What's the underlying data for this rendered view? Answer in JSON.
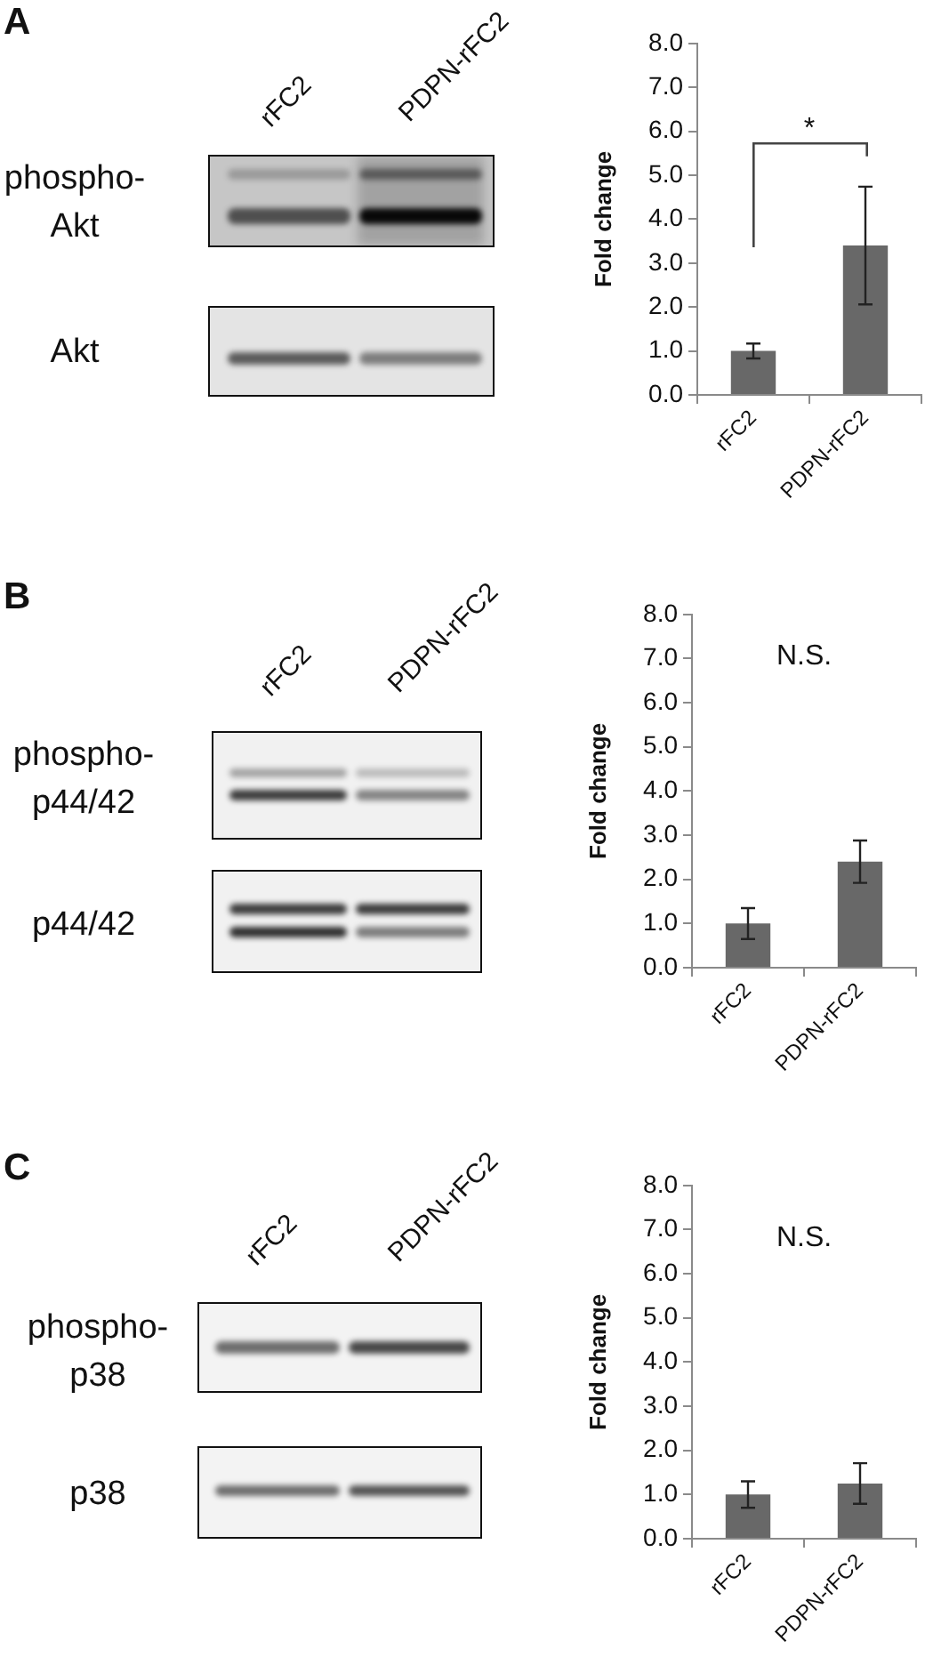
{
  "chart_data": [
    {
      "type": "bar",
      "ylabel": "Fold change",
      "categories": [
        "rFC2",
        "PDPN-rFC2"
      ],
      "values": [
        1.0,
        3.4
      ],
      "errors": [
        0.17,
        1.34
      ],
      "color": "#686868",
      "ylim": [
        0,
        8
      ],
      "yticks": [
        {
          "value": 0,
          "label": "0.0"
        },
        {
          "value": 1,
          "label": "1.0"
        },
        {
          "value": 2,
          "label": "2.0"
        },
        {
          "value": 3,
          "label": "3.0"
        },
        {
          "value": 4,
          "label": "4.0"
        },
        {
          "value": 5,
          "label": "5.0"
        },
        {
          "value": 6,
          "label": "6.0"
        },
        {
          "value": 7,
          "label": "7.0"
        },
        {
          "value": 8,
          "label": "8.0"
        }
      ],
      "annotations": [
        "A",
        "*",
        "phospho-Akt",
        "Akt"
      ]
    },
    {
      "type": "bar",
      "ylabel": "Fold change",
      "categories": [
        "rFC2",
        "PDPN-rFC2"
      ],
      "values": [
        1.0,
        2.4
      ],
      "errors": [
        0.35,
        0.48
      ],
      "color": "#686868",
      "ylim": [
        0,
        8
      ],
      "yticks": [
        {
          "value": 0,
          "label": "0.0"
        },
        {
          "value": 1,
          "label": "1.0"
        },
        {
          "value": 2,
          "label": "2.0"
        },
        {
          "value": 3,
          "label": "3.0"
        },
        {
          "value": 4,
          "label": "4.0"
        },
        {
          "value": 5,
          "label": "5.0"
        },
        {
          "value": 6,
          "label": "6.0"
        },
        {
          "value": 7,
          "label": "7.0"
        },
        {
          "value": 8,
          "label": "8.0"
        }
      ],
      "annotations": [
        "B",
        "N.S.",
        "phospho-p44/42",
        "p44/42"
      ]
    },
    {
      "type": "bar",
      "ylabel": "Fold change",
      "categories": [
        "rFC2",
        "PDPN-rFC2"
      ],
      "values": [
        1.0,
        1.25
      ],
      "errors": [
        0.3,
        0.46
      ],
      "color": "#686868",
      "ylim": [
        0,
        8
      ],
      "yticks": [
        {
          "value": 0,
          "label": "0.0"
        },
        {
          "value": 1,
          "label": "1.0"
        },
        {
          "value": 2,
          "label": "2.0"
        },
        {
          "value": 3,
          "label": "3.0"
        },
        {
          "value": 4,
          "label": "4.0"
        },
        {
          "value": 5,
          "label": "5.0"
        },
        {
          "value": 6,
          "label": "6.0"
        },
        {
          "value": 7,
          "label": "7.0"
        },
        {
          "value": 8,
          "label": "8.0"
        }
      ],
      "annotations": [
        "C",
        "N.S.",
        "phospho-p38",
        "p38"
      ]
    }
  ]
}
